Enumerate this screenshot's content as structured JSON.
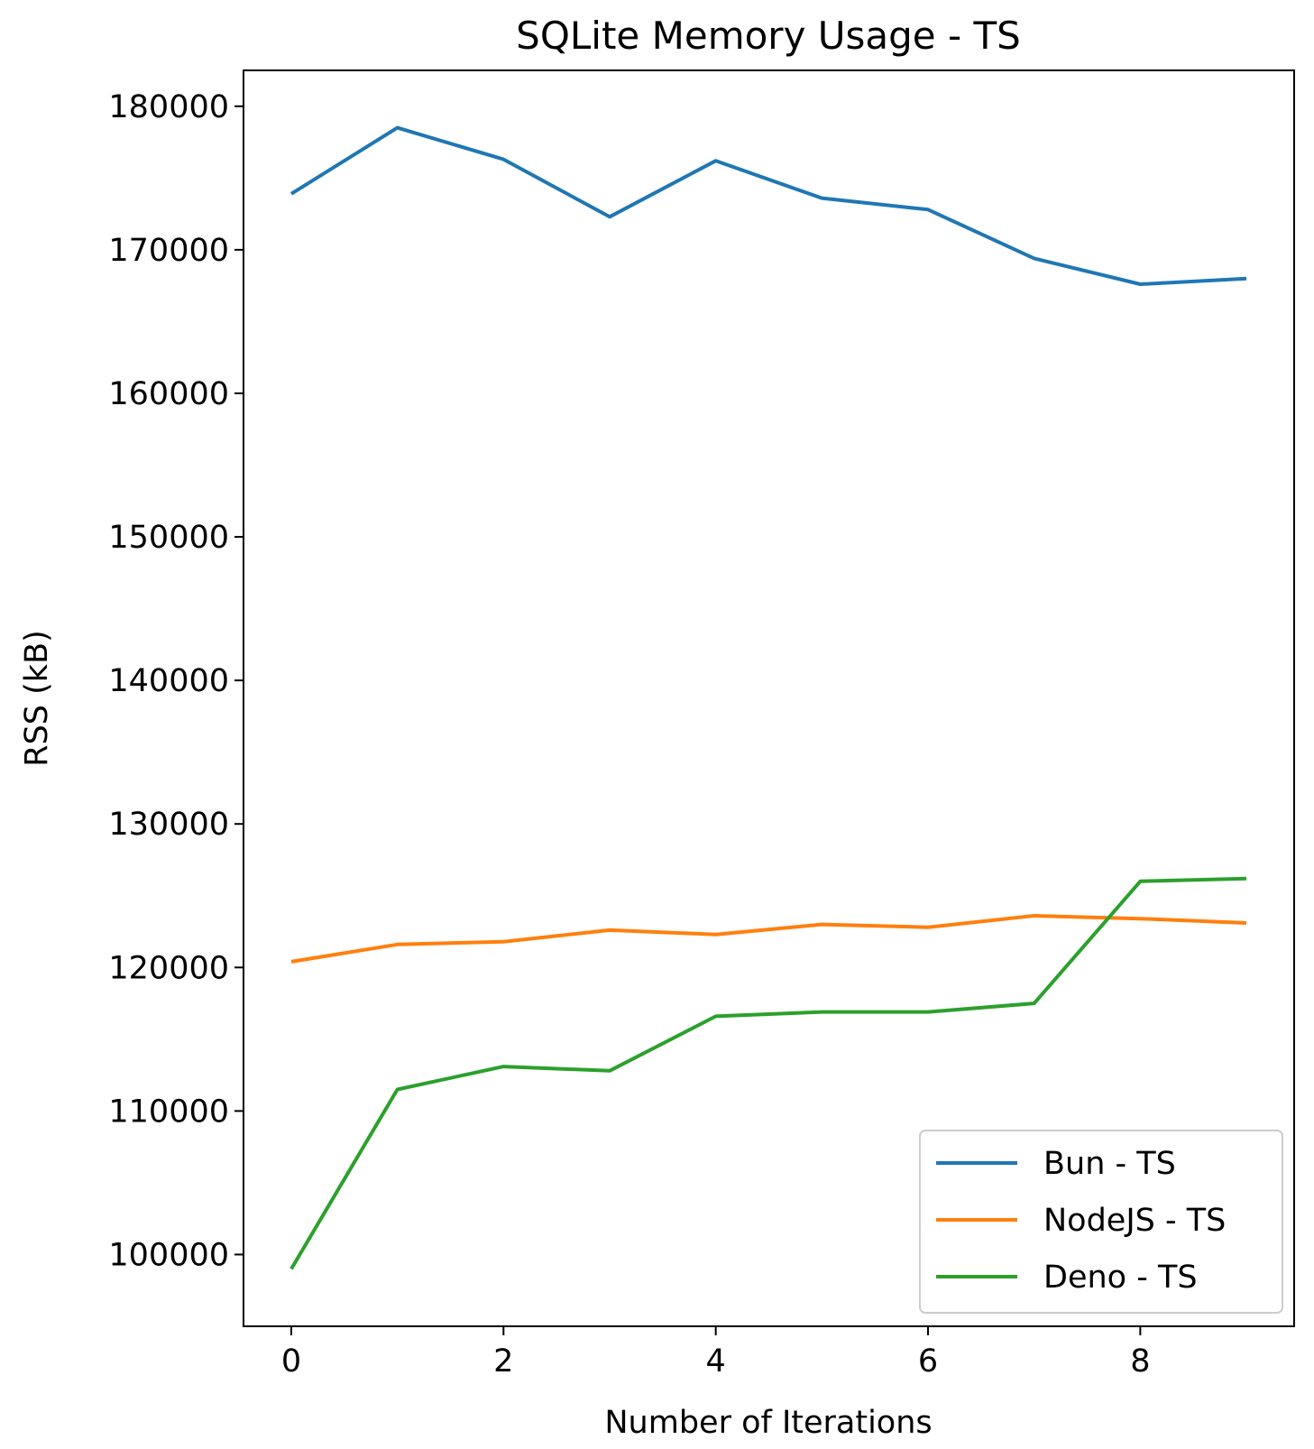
{
  "chart_data": {
    "type": "line",
    "title": "SQLite Memory Usage - TS",
    "xlabel": "Number of Iterations",
    "ylabel": "RSS (kB)",
    "xlim": [
      -0.45,
      9.45
    ],
    "ylim": [
      95000,
      182500
    ],
    "xticks": [
      0,
      2,
      4,
      6,
      8
    ],
    "yticks": [
      100000,
      110000,
      120000,
      130000,
      140000,
      150000,
      160000,
      170000,
      180000
    ],
    "x": [
      0,
      1,
      2,
      3,
      4,
      5,
      6,
      7,
      8,
      9
    ],
    "series": [
      {
        "name": "Bun - TS",
        "color": "#1f77b4",
        "values": [
          173900,
          178500,
          176300,
          172300,
          176200,
          173600,
          172800,
          169400,
          167600,
          168000
        ]
      },
      {
        "name": "NodeJS - TS",
        "color": "#ff7f0e",
        "values": [
          120400,
          121600,
          121800,
          122600,
          122300,
          123000,
          122800,
          123600,
          123400,
          123100
        ]
      },
      {
        "name": "Deno - TS",
        "color": "#2ca02c",
        "values": [
          99000,
          111500,
          113100,
          112800,
          116600,
          116900,
          116900,
          117500,
          126000,
          126200
        ]
      }
    ],
    "grid": false,
    "legend_position": "lower-right"
  }
}
